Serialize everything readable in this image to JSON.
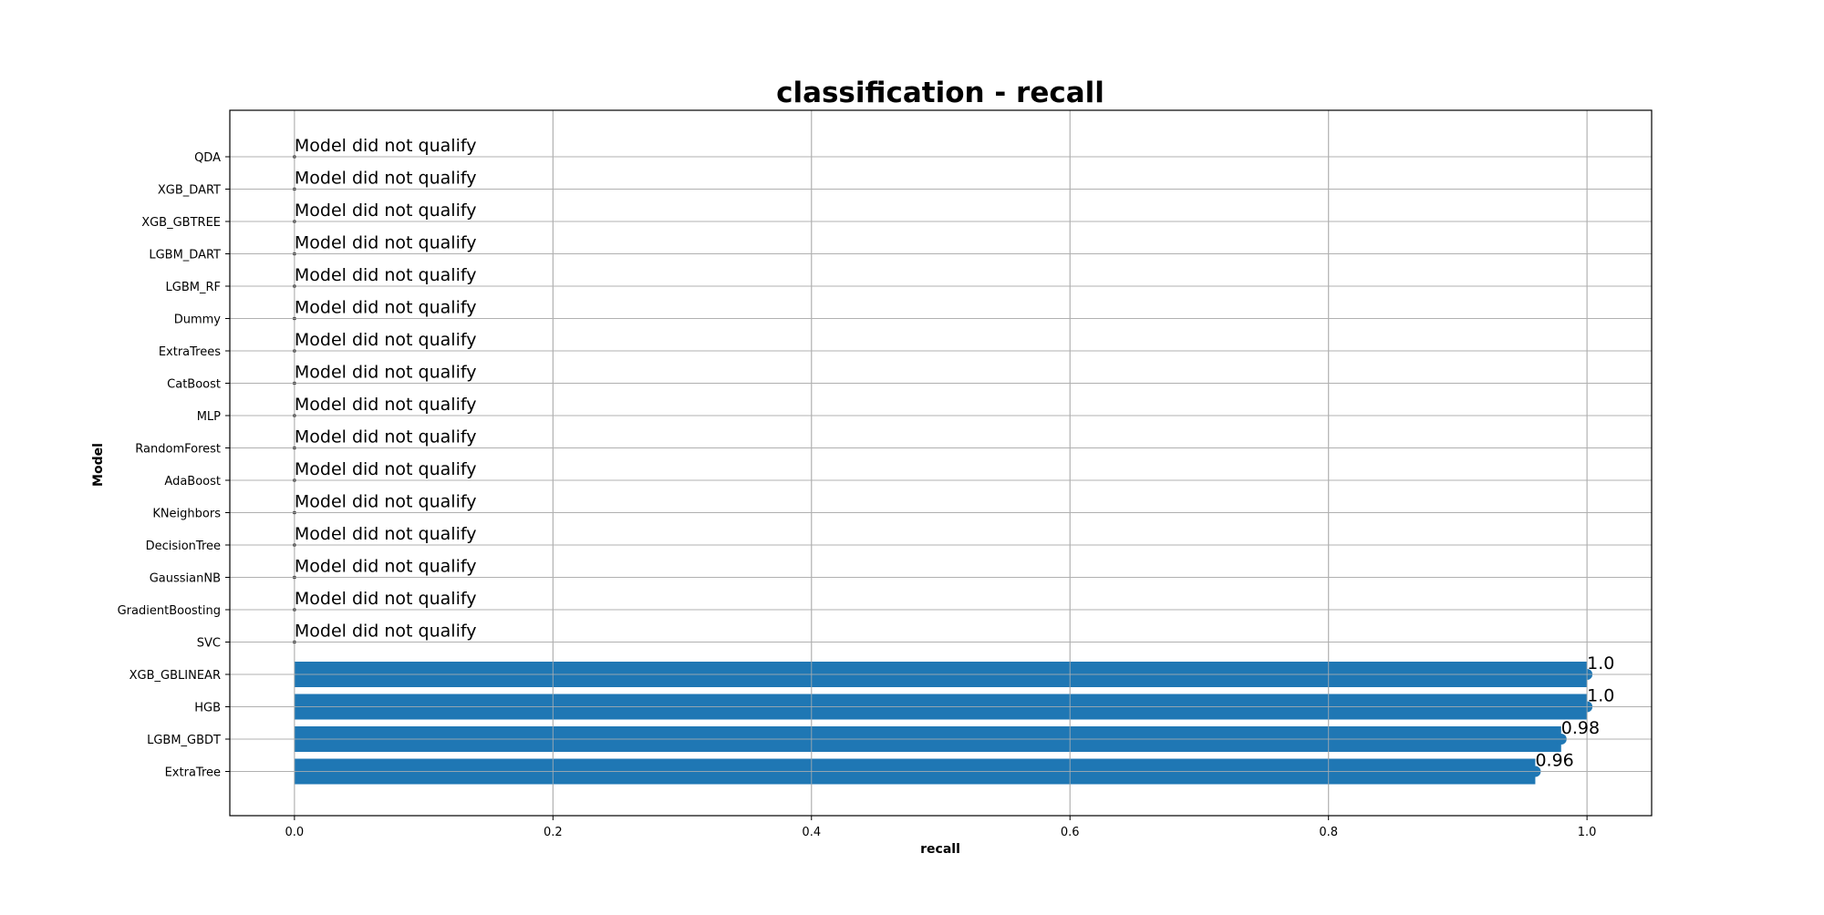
{
  "chart_data": {
    "type": "bar",
    "orientation": "horizontal",
    "title": "classification - recall",
    "xlabel": "recall",
    "ylabel": "Model",
    "xlim": [
      -0.05,
      1.05
    ],
    "xticks": [
      "0.0",
      "0.2",
      "0.4",
      "0.6",
      "0.8",
      "1.0"
    ],
    "grid": true,
    "bar_color": "#1f77b4",
    "categories": [
      "ExtraTree",
      "LGBM_GBDT",
      "HGB",
      "XGB_GBLINEAR",
      "SVC",
      "GradientBoosting",
      "GaussianNB",
      "DecisionTree",
      "KNeighbors",
      "AdaBoost",
      "RandomForest",
      "MLP",
      "CatBoost",
      "ExtraTrees",
      "Dummy",
      "LGBM_RF",
      "LGBM_DART",
      "XGB_GBTREE",
      "XGB_DART",
      "QDA"
    ],
    "values": [
      0.96,
      0.98,
      1.0,
      1.0,
      0,
      0,
      0,
      0,
      0,
      0,
      0,
      0,
      0,
      0,
      0,
      0,
      0,
      0,
      0,
      0
    ],
    "data_labels": [
      "0.96",
      "0.98",
      "1.0",
      "1.0",
      "Model did not qualify",
      "Model did not qualify",
      "Model did not qualify",
      "Model did not qualify",
      "Model did not qualify",
      "Model did not qualify",
      "Model did not qualify",
      "Model did not qualify",
      "Model did not qualify",
      "Model did not qualify",
      "Model did not qualify",
      "Model did not qualify",
      "Model did not qualify",
      "Model did not qualify",
      "Model did not qualify",
      "Model did not qualify"
    ]
  }
}
